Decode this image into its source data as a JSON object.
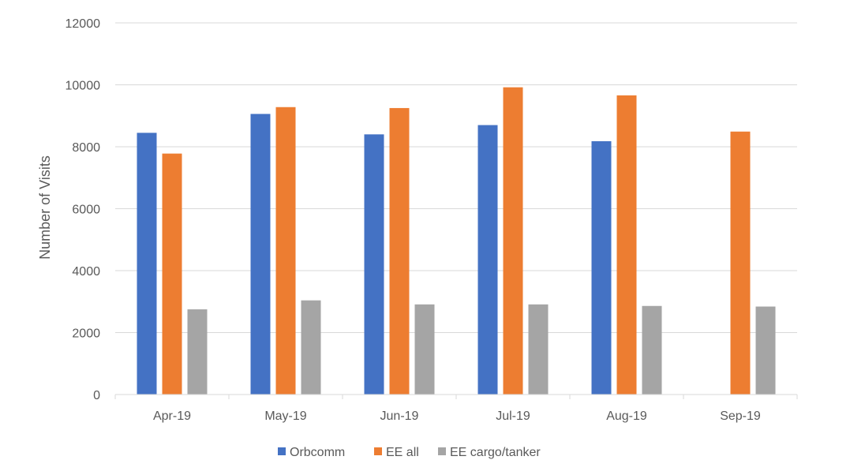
{
  "chart_data": {
    "type": "bar",
    "title": "",
    "xlabel": "",
    "ylabel": "Number of Visits",
    "ylim": [
      0,
      12000
    ],
    "yticks": [
      "0",
      "2000",
      "4000",
      "6000",
      "8000",
      "10000",
      "12000"
    ],
    "grid": true,
    "legend_position": "bottom",
    "categories": [
      "Apr-19",
      "May-19",
      "Jun-19",
      "Jul-19",
      "Aug-19",
      "Sep-19"
    ],
    "series": [
      {
        "name": "Orbcomm",
        "color": "#4472C4",
        "values": [
          8450,
          9060,
          8400,
          8700,
          8180,
          null
        ]
      },
      {
        "name": "EE all",
        "color": "#ED7D31",
        "values": [
          7780,
          9280,
          9250,
          9920,
          9660,
          8490
        ]
      },
      {
        "name": "EE cargo/tanker",
        "color": "#A5A5A5",
        "values": [
          2750,
          3040,
          2910,
          2910,
          2860,
          2840
        ]
      }
    ]
  }
}
